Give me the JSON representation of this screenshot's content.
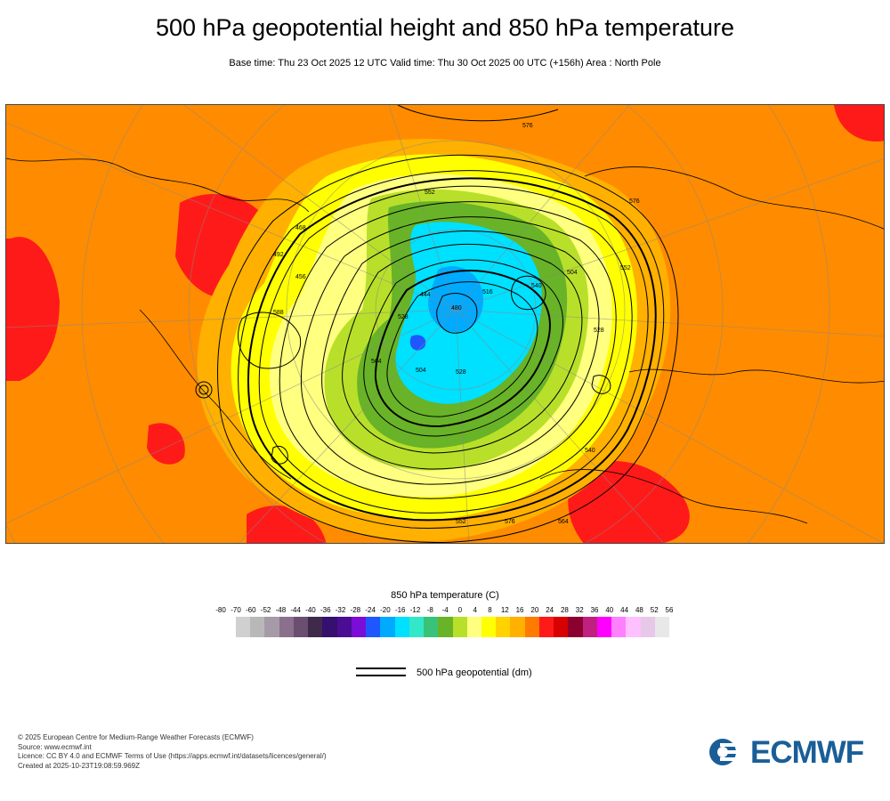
{
  "title": "500 hPa geopotential height and 850 hPa temperature",
  "subtitle": "Base time: Thu 23 Oct 2025 12 UTC Valid time: Thu 30 Oct 2025 00 UTC (+156h) Area : North Pole",
  "map": {
    "projection": "North Pole polar stereographic",
    "contour_labels": [
      "576",
      "552",
      "528",
      "504",
      "480",
      "516",
      "540",
      "564",
      "588",
      "492",
      "468",
      "456",
      "444",
      "528",
      "552",
      "576",
      "504",
      "528",
      "552",
      "576",
      "564",
      "540"
    ],
    "temperature_regions": [
      {
        "name": "warm-background",
        "level": 12
      },
      {
        "name": "hot-region-west",
        "level": 24
      },
      {
        "name": "hot-region-southeast",
        "level": 24
      },
      {
        "name": "mild-ring",
        "level": 4
      },
      {
        "name": "cool-ring",
        "level": -4
      },
      {
        "name": "cold-core",
        "level": -20
      },
      {
        "name": "coldest-core",
        "level": -32
      }
    ]
  },
  "legend": {
    "title": "850 hPa temperature (C)",
    "ticks": [
      "-80",
      "-70",
      "-60",
      "-52",
      "-48",
      "-44",
      "-40",
      "-36",
      "-32",
      "-28",
      "-24",
      "-20",
      "-16",
      "-12",
      "-8",
      "-4",
      "0",
      "4",
      "8",
      "12",
      "16",
      "20",
      "24",
      "28",
      "32",
      "36",
      "40",
      "44",
      "48",
      "52",
      "56"
    ],
    "colors": [
      "#e6e6e6",
      "#d0d0d0",
      "#b8b8b8",
      "#a79aa8",
      "#8a708c",
      "#6b4f70",
      "#3f2a4c",
      "#35106e",
      "#4a0d94",
      "#7b0dd8",
      "#1f57ff",
      "#00aaff",
      "#00e0ff",
      "#33e8c8",
      "#39c27a",
      "#68b327",
      "#b8e02a",
      "#ffff80",
      "#ffff00",
      "#ffd200",
      "#ffb000",
      "#ff7a00",
      "#ff1a1a",
      "#d80000",
      "#8c0030",
      "#c02080",
      "#ff00ff",
      "#ff80ff",
      "#ffc0ff",
      "#e8c8e8",
      "#e8e8e8"
    ]
  },
  "geo_legend": {
    "label": "500 hPa geopotential (dm)"
  },
  "footer": {
    "line1": "© 2025 European Centre for Medium-Range Weather Forecasts (ECMWF)",
    "line2": "Source: www.ecmwf.int",
    "line3": "Licence: CC BY 4.0 and ECMWF Terms of Use (https://apps.ecmwf.int/datasets/licences/general/)",
    "line4": "Created at 2025-10-23T19:08:59.969Z"
  },
  "logo": {
    "text": "ECMWF",
    "color": "#1a5e98"
  }
}
